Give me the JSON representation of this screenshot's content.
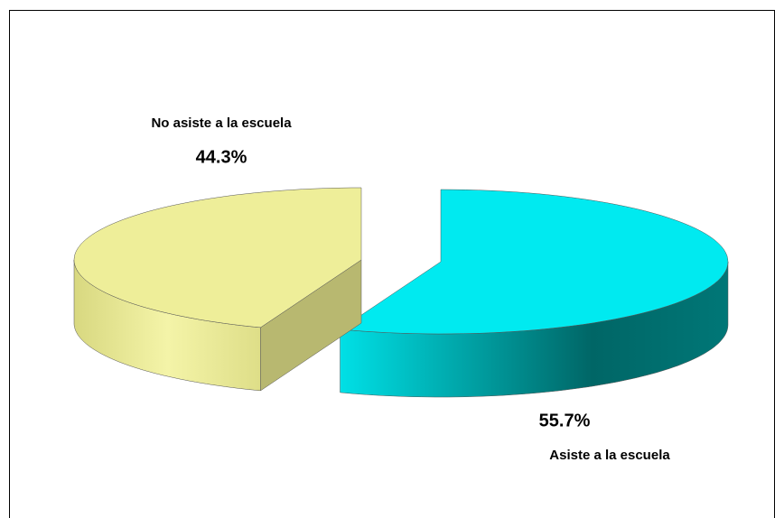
{
  "chart_data": {
    "type": "pie",
    "categories": [
      "Asiste a la escuela",
      "No asiste a la escuela"
    ],
    "values": [
      55.7,
      44.3
    ],
    "value_labels": [
      "55.7%",
      "44.3%"
    ],
    "colors": [
      "#00eaf0",
      "#eeee99"
    ]
  }
}
